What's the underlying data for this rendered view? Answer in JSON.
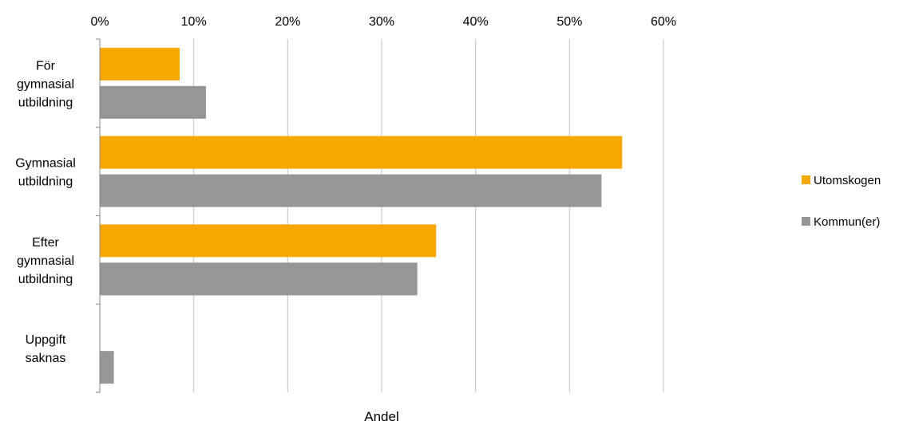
{
  "chart_data": {
    "type": "bar",
    "orientation": "horizontal",
    "title": "",
    "xlabel": "Andel",
    "ylabel": "",
    "xlim": [
      0,
      0.6
    ],
    "x_ticks": [
      "0%",
      "10%",
      "20%",
      "30%",
      "40%",
      "50%",
      "60%"
    ],
    "x_tick_values": [
      0,
      0.1,
      0.2,
      0.3,
      0.4,
      0.5,
      0.6
    ],
    "x_axis_position": "top",
    "grid": true,
    "legend_position": "right",
    "categories": [
      [
        "För",
        "gymnasial",
        "utbildning"
      ],
      [
        "Gymnasial",
        "utbildning"
      ],
      [
        "Efter",
        "gymnasial",
        "utbildning"
      ],
      [
        "Uppgift",
        "saknas"
      ]
    ],
    "series": [
      {
        "name": "Utomskogen",
        "color": "#f5a800",
        "values": [
          0.085,
          0.556,
          0.358,
          0.0
        ]
      },
      {
        "name": "Kommun(er)",
        "color": "#969696",
        "values": [
          0.113,
          0.534,
          0.338,
          0.015
        ]
      }
    ]
  }
}
